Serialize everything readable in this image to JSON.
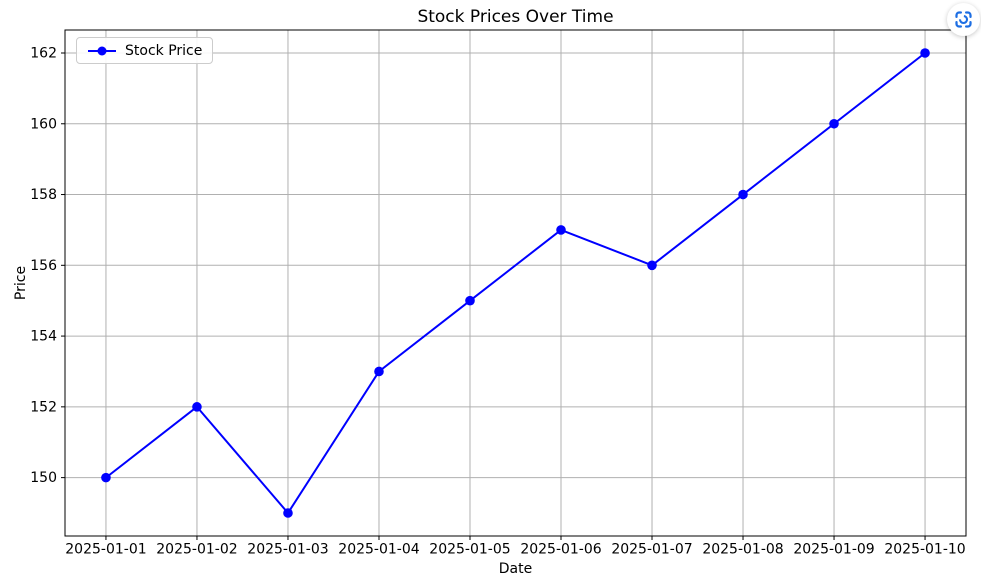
{
  "figure": {
    "background": "#ffffff",
    "text_color": "#000000"
  },
  "overlay_button": {
    "icon": "screenshot-scan-icon",
    "icon_color": "#1d6ee3",
    "background": "#ffffff"
  },
  "chart_data": {
    "type": "line",
    "title": "Stock Prices Over Time",
    "xlabel": "Date",
    "ylabel": "Price",
    "categories": [
      "2025-01-01",
      "2025-01-02",
      "2025-01-03",
      "2025-01-04",
      "2025-01-05",
      "2025-01-06",
      "2025-01-07",
      "2025-01-08",
      "2025-01-09",
      "2025-01-10"
    ],
    "series": [
      {
        "name": "Stock Price",
        "color": "#0000ff",
        "marker": "circle",
        "marker_size": 4.8,
        "line_width": 2,
        "values": [
          150,
          152,
          149,
          153,
          155,
          157,
          156,
          158,
          160,
          162
        ]
      }
    ],
    "yticks": [
      150,
      152,
      154,
      156,
      158,
      160,
      162
    ],
    "ylim": [
      148.35,
      162.65
    ],
    "xlim": [
      -0.45,
      9.45
    ],
    "grid": true,
    "grid_color": "#b0b0b0",
    "axis_color": "#000000",
    "legend": {
      "position": "upper-left",
      "label": "Stock Price"
    }
  }
}
